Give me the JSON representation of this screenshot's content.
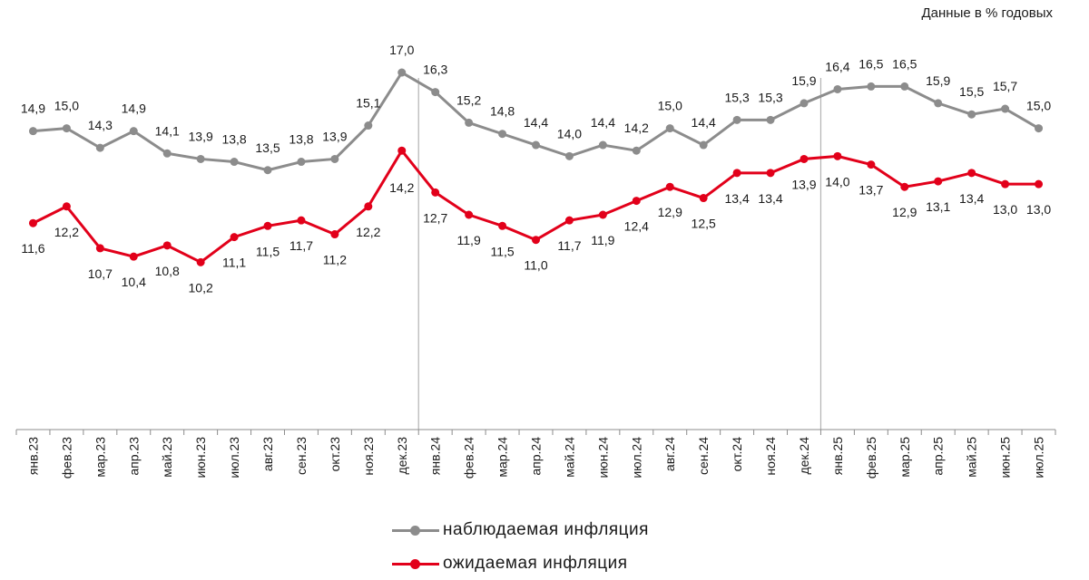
{
  "note": "Данные в % годовых",
  "chart_data": {
    "type": "line",
    "categories": [
      "янв.23",
      "фев.23",
      "мар.23",
      "апр.23",
      "май.23",
      "июн.23",
      "июл.23",
      "авг.23",
      "сен.23",
      "окт.23",
      "ноя.23",
      "дек.23",
      "янв.24",
      "фев.24",
      "мар.24",
      "апр.24",
      "май.24",
      "июн.24",
      "июл.24",
      "авг.24",
      "сен.24",
      "окт.24",
      "ноя.24",
      "дек.24",
      "янв.25",
      "фев.25",
      "мар.25",
      "апр.25",
      "май.25",
      "июн.25",
      "июл.25"
    ],
    "series": [
      {
        "name": "наблюдаемая  инфляция",
        "color": "#8c8c8c",
        "values": [
          14.9,
          15.0,
          14.3,
          14.9,
          14.1,
          13.9,
          13.8,
          13.5,
          13.8,
          13.9,
          15.1,
          17.0,
          16.3,
          15.2,
          14.8,
          14.4,
          14.0,
          14.4,
          14.2,
          15.0,
          14.4,
          15.3,
          15.3,
          15.9,
          16.4,
          16.5,
          16.5,
          15.9,
          15.5,
          15.7,
          15.0
        ],
        "labels": [
          "14,9",
          "15,0",
          "14,3",
          "14,9",
          "14,1",
          "13,9",
          "13,8",
          "13,5",
          "13,8",
          "13,9",
          "15,1",
          "17,0",
          "16,3",
          "15,2",
          "14,8",
          "14,4",
          "14,0",
          "14,4",
          "14,2",
          "15,0",
          "14,4",
          "15,3",
          "15,3",
          "15,9",
          "16,4",
          "16,5",
          "16,5",
          "15,9",
          "15,5",
          "15,7",
          "15,0"
        ]
      },
      {
        "name": "ожидаемая  инфляция",
        "color": "#e2001a",
        "values": [
          11.6,
          12.2,
          10.7,
          10.4,
          10.8,
          10.2,
          11.1,
          11.5,
          11.7,
          11.2,
          12.2,
          14.2,
          12.7,
          11.9,
          11.5,
          11.0,
          11.7,
          11.9,
          12.4,
          12.9,
          12.5,
          13.4,
          13.4,
          13.9,
          14.0,
          13.7,
          12.9,
          13.1,
          13.4,
          13.0,
          13.0
        ],
        "labels": [
          "11,6",
          "12,2",
          "10,7",
          "10,4",
          "10,8",
          "10,2",
          "11,1",
          "11,5",
          "11,7",
          "11,2",
          "12,2",
          "14,2",
          "12,7",
          "11,9",
          "11,5",
          "11,0",
          "11,7",
          "11,9",
          "12,4",
          "12,9",
          "12,5",
          "13,4",
          "13,4",
          "13,9",
          "14,0",
          "13,7",
          "12,9",
          "13,1",
          "13,4",
          "13,0",
          "13,0"
        ]
      }
    ],
    "ylim": [
      4.2,
      19.6
    ],
    "year_dividers_after": [
      "дек.23",
      "дек.24"
    ],
    "legend_position": "bottom-center",
    "grid": false
  },
  "legend": {
    "observed": "наблюдаемая  инфляция",
    "expected": "ожидаемая  инфляция"
  }
}
